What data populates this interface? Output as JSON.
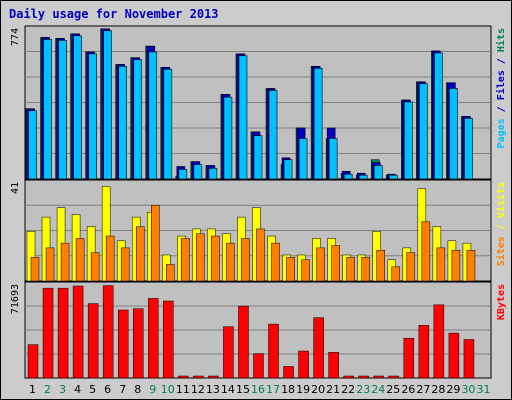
{
  "title": "Daily usage for November 2013",
  "colors": {
    "hits": "#00805c",
    "files": "#0000c0",
    "pages": "#00c0ff",
    "visits": "#ffff00",
    "sites": "#ff8000",
    "kbytes": "#ff0000",
    "weekend_label": "#00805c",
    "weekday_label": "#000000",
    "plot_bg": "#c0c0c0"
  },
  "chart_data": [
    {
      "type": "bar",
      "panel": "pages-files-hits",
      "ymax_label": "774",
      "ymax": 774,
      "side_labels": [
        {
          "text": "Pages",
          "color": "#00c0ff"
        },
        {
          "text": " / ",
          "color": "#0000c0"
        },
        {
          "text": "Files",
          "color": "#0000c0"
        },
        {
          "text": " / ",
          "color": "#0000c0"
        },
        {
          "text": "Hits",
          "color": "#00805c"
        }
      ],
      "series": [
        {
          "name": "Hits",
          "values": [
            365,
            735,
            730,
            754,
            660,
            780,
            595,
            630,
            690,
            580,
            15,
            90,
            70,
            440,
            650,
            245,
            470,
            75,
            265,
            585,
            210,
            30,
            20,
            100,
            20,
            410,
            505,
            665,
            500,
            325,
            0
          ]
        },
        {
          "name": "Files",
          "values": [
            365,
            735,
            730,
            754,
            660,
            780,
            595,
            630,
            690,
            580,
            65,
            90,
            70,
            440,
            650,
            245,
            470,
            110,
            265,
            585,
            265,
            40,
            30,
            85,
            25,
            410,
            505,
            665,
            500,
            325,
            0
          ]
        },
        {
          "name": "Pages",
          "values": [
            355,
            725,
            720,
            744,
            650,
            770,
            585,
            620,
            660,
            570,
            50,
            75,
            55,
            425,
            640,
            225,
            460,
            100,
            210,
            575,
            210,
            25,
            20,
            70,
            20,
            400,
            495,
            655,
            470,
            315,
            0
          ]
        }
      ]
    },
    {
      "type": "bar",
      "panel": "visits-sites",
      "ymax_label": "41",
      "ymax": 41,
      "side_labels": [
        {
          "text": "Sites",
          "color": "#ff8000"
        },
        {
          "text": " / ",
          "color": "#ffff00"
        },
        {
          "text": "Visits",
          "color": "#ffff00"
        }
      ],
      "series": [
        {
          "name": "Visits",
          "values": [
            21,
            27,
            31,
            28,
            23,
            40,
            17,
            27,
            29,
            11,
            19,
            22,
            22,
            20,
            27,
            31,
            19,
            11,
            11,
            18,
            18,
            11,
            11,
            21,
            9,
            14,
            39,
            23,
            17,
            16,
            0
          ]
        },
        {
          "name": "Sites",
          "values": [
            10,
            14,
            16,
            18,
            12,
            19,
            14,
            23,
            32,
            7,
            18,
            20,
            19,
            16,
            18,
            22,
            16,
            10,
            9,
            14,
            15,
            10,
            10,
            13,
            6,
            12,
            25,
            14,
            13,
            13,
            0
          ]
        }
      ]
    },
    {
      "type": "bar",
      "panel": "kbytes",
      "ymax_label": "71693",
      "ymax": 71693,
      "side_labels": [
        {
          "text": "KBytes",
          "color": "#ff0000"
        }
      ],
      "series": [
        {
          "name": "KBytes",
          "values": [
            26000,
            70000,
            70000,
            71693,
            58000,
            72000,
            53000,
            54000,
            62000,
            60000,
            300,
            1200,
            400,
            40000,
            56000,
            19000,
            42000,
            9000,
            21000,
            47000,
            20000,
            300,
            300,
            300,
            300,
            31000,
            41000,
            57000,
            35000,
            30000,
            0
          ]
        }
      ]
    }
  ],
  "x_labels": [
    {
      "text": "1",
      "weekend": false
    },
    {
      "text": "2",
      "weekend": true
    },
    {
      "text": "3",
      "weekend": true
    },
    {
      "text": "4",
      "weekend": false
    },
    {
      "text": "5",
      "weekend": false
    },
    {
      "text": "6",
      "weekend": false
    },
    {
      "text": "7",
      "weekend": false
    },
    {
      "text": "8",
      "weekend": false
    },
    {
      "text": "9",
      "weekend": true
    },
    {
      "text": "10",
      "weekend": true
    },
    {
      "text": "11",
      "weekend": false
    },
    {
      "text": "12",
      "weekend": false
    },
    {
      "text": "13",
      "weekend": false
    },
    {
      "text": "14",
      "weekend": false
    },
    {
      "text": "15",
      "weekend": false
    },
    {
      "text": "16",
      "weekend": true
    },
    {
      "text": "17",
      "weekend": true
    },
    {
      "text": "18",
      "weekend": false
    },
    {
      "text": "19",
      "weekend": false
    },
    {
      "text": "20",
      "weekend": false
    },
    {
      "text": "21",
      "weekend": false
    },
    {
      "text": "22",
      "weekend": false
    },
    {
      "text": "23",
      "weekend": true
    },
    {
      "text": "24",
      "weekend": true
    },
    {
      "text": "25",
      "weekend": false
    },
    {
      "text": "26",
      "weekend": false
    },
    {
      "text": "27",
      "weekend": false
    },
    {
      "text": "28",
      "weekend": false
    },
    {
      "text": "29",
      "weekend": false
    },
    {
      "text": "30",
      "weekend": true
    },
    {
      "text": "31",
      "weekend": true
    }
  ]
}
